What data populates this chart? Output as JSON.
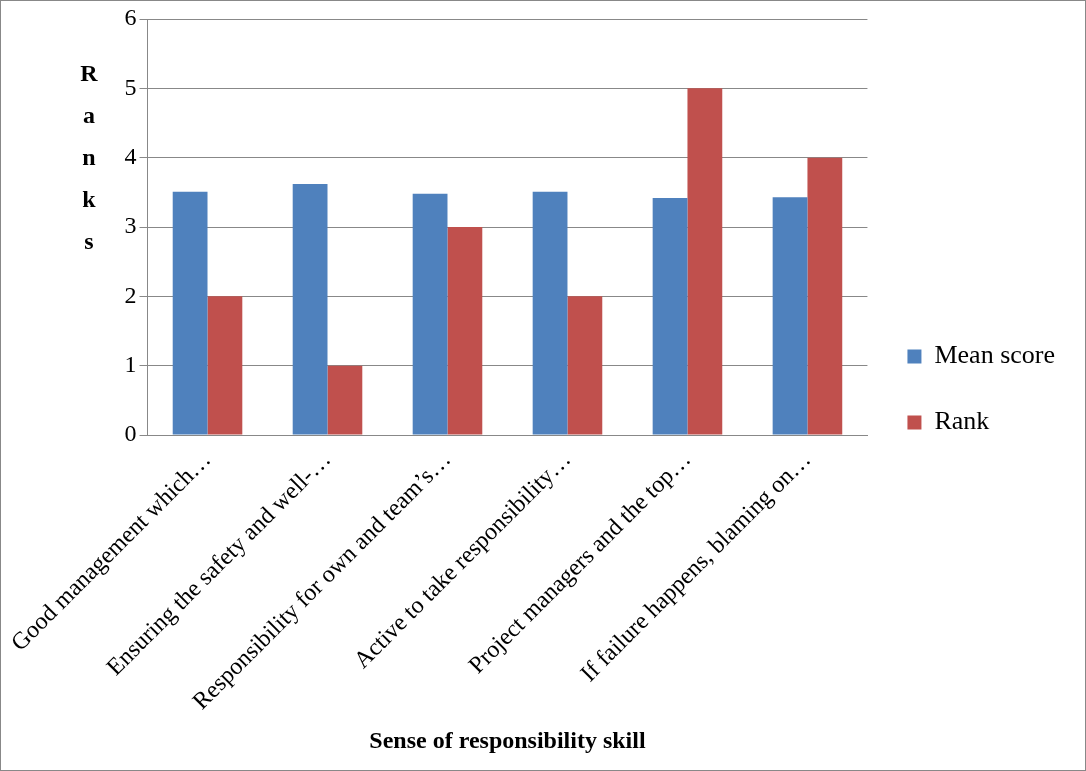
{
  "chart_data": {
    "type": "bar",
    "xlabel": "Sense of responsibility skill",
    "ylabel": "Ranks",
    "categories": [
      "Good management which…",
      "Ensuring the safety and well-…",
      "Responsibility for own and team’s…",
      "Active to take responsibility…",
      "Project managers and the top…",
      "If failure happens, blaming on…"
    ],
    "series": [
      {
        "name": "Mean score",
        "color": "#4f81bd",
        "values": [
          3.51,
          3.62,
          3.48,
          3.51,
          3.42,
          3.43
        ]
      },
      {
        "name": "Rank",
        "color": "#c0504d",
        "values": [
          2,
          1,
          3,
          2,
          5,
          4
        ]
      }
    ],
    "ylim": [
      0,
      6
    ],
    "yticks": [
      0,
      1,
      2,
      3,
      4,
      5,
      6
    ],
    "grid": "y",
    "legend": "right"
  }
}
